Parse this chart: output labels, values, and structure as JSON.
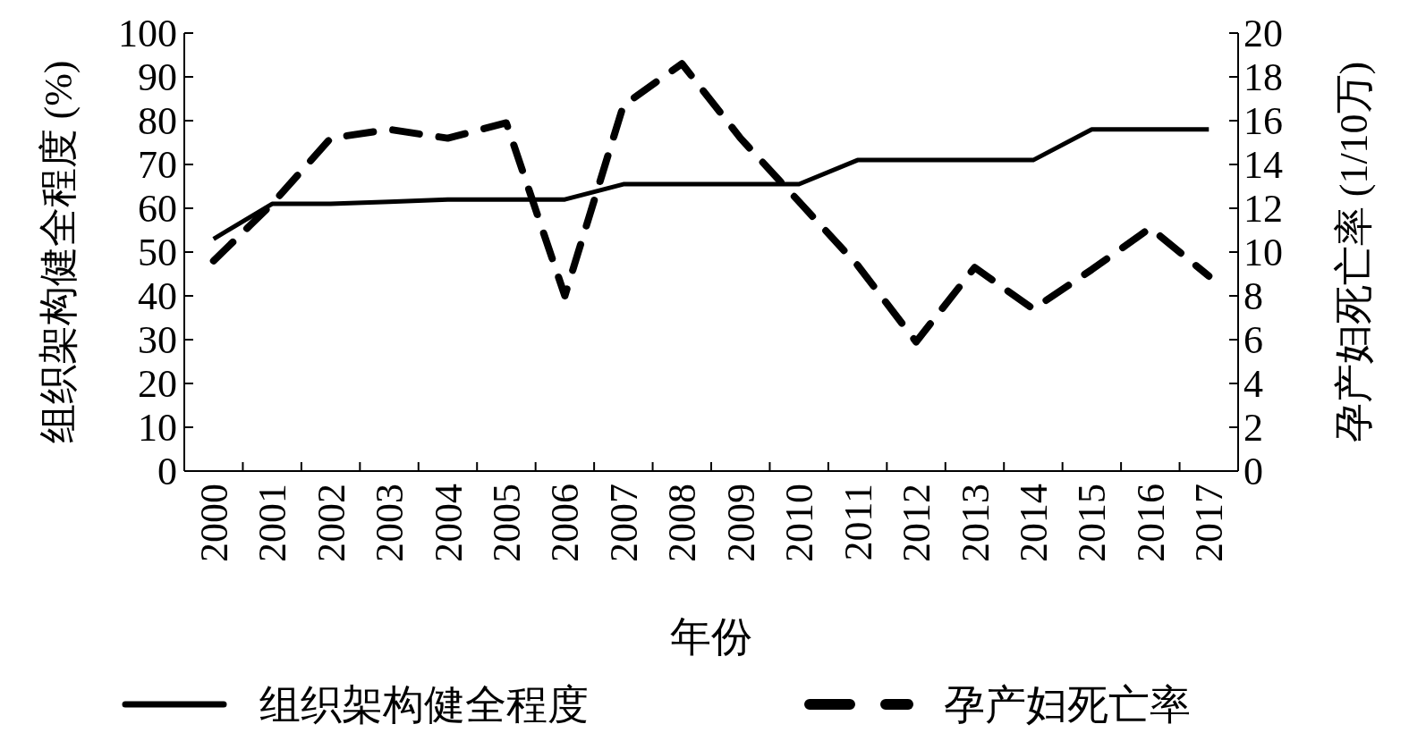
{
  "chart_data": {
    "type": "line",
    "xlabel": "年份",
    "ylabel": "组织架构健全程度 (%)",
    "y2label": "孕产妇死亡率 (1/10万)",
    "categories": [
      "2000",
      "2001",
      "2002",
      "2003",
      "2004",
      "2005",
      "2006",
      "2007",
      "2008",
      "2009",
      "2010",
      "2011",
      "2012",
      "2013",
      "2014",
      "2015",
      "2016",
      "2017"
    ],
    "ylim": [
      0,
      100
    ],
    "yticks": [
      0,
      10,
      20,
      30,
      40,
      50,
      60,
      70,
      80,
      90,
      100
    ],
    "y2lim": [
      0,
      20
    ],
    "y2ticks": [
      0,
      2,
      4,
      6,
      8,
      10,
      12,
      14,
      16,
      18,
      20
    ],
    "legend": "bottom",
    "grid": false,
    "series": [
      {
        "name": "组织架构健全程度",
        "color": "#000000",
        "line_style": "solid",
        "values": [
          53,
          61,
          61,
          61.5,
          62,
          62,
          62,
          65.5,
          65.5,
          65.5,
          65.5,
          71,
          71,
          71,
          71,
          78,
          78,
          78
        ]
      },
      {
        "name": "孕产妇死亡率",
        "color": "#000000",
        "line_style": "dashed",
        "axis": "y2",
        "values": [
          9.6,
          12.2,
          15.2,
          15.6,
          15.2,
          15.9,
          8.0,
          16.7,
          18.6,
          15.2,
          12.3,
          9.4,
          5.9,
          9.3,
          7.4,
          9.2,
          11.1,
          8.9
        ]
      }
    ]
  }
}
